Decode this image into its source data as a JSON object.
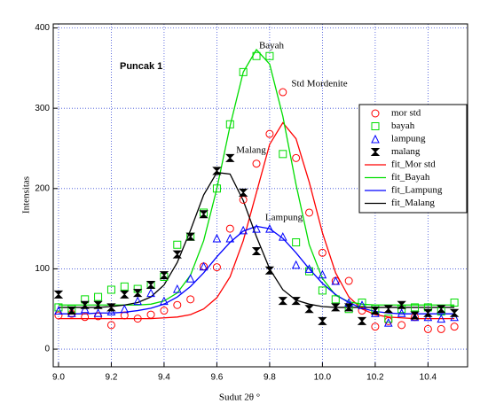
{
  "chart_data": {
    "type": "scatter",
    "xlabel": "Sudut 2θ °",
    "ylabel": "Intensitas",
    "annotations": [
      "Puncak 1",
      "Bayah",
      "Std Mordenite",
      "Malang",
      "Lampung"
    ],
    "xlim": [
      8.98,
      10.55
    ],
    "ylim": [
      -22,
      405
    ],
    "xticks": [
      {
        "value": 9,
        "label": "9.0"
      },
      9.2,
      9.4,
      9.6,
      9.8,
      {
        "value": 10,
        "label": "10.0"
      },
      10.2,
      10.4
    ],
    "yticks": [
      0,
      100,
      200,
      300,
      400
    ],
    "grid": true,
    "legend": "upper right",
    "x": [
      9.0,
      9.05,
      9.1,
      9.15,
      9.2,
      9.25,
      9.3,
      9.35,
      9.4,
      9.45,
      9.5,
      9.55,
      9.6,
      9.65,
      9.7,
      9.75,
      9.8,
      9.85,
      9.9,
      9.95,
      10.0,
      10.05,
      10.1,
      10.15,
      10.2,
      10.25,
      10.3,
      10.35,
      10.4,
      10.45,
      10.5
    ],
    "series": [
      {
        "name": "mor std",
        "color": "#ff0000",
        "mode": "markers",
        "marker": "circle",
        "values": [
          42,
          44,
          40,
          41,
          30,
          42,
          38,
          43,
          48,
          55,
          62,
          103,
          102,
          150,
          186,
          231,
          268,
          320,
          238,
          170,
          120,
          85,
          85,
          48,
          28,
          35,
          30,
          40,
          25,
          25,
          28
        ]
      },
      {
        "name": "bayah",
        "color": "#00dd00",
        "mode": "markers",
        "marker": "square",
        "values": [
          52,
          50,
          62,
          65,
          74,
          78,
          75,
          80,
          90,
          130,
          140,
          170,
          200,
          280,
          345,
          365,
          365,
          243,
          133,
          97,
          73,
          62,
          50,
          58,
          50,
          38,
          50,
          52,
          52,
          47,
          58
        ]
      },
      {
        "name": "lampung",
        "color": "#0000ff",
        "mode": "markers",
        "marker": "triangle",
        "values": [
          48,
          45,
          50,
          45,
          47,
          50,
          60,
          70,
          60,
          75,
          88,
          103,
          138,
          138,
          148,
          150,
          150,
          140,
          105,
          100,
          93,
          85,
          58,
          55,
          45,
          33,
          45,
          40,
          40,
          38,
          40
        ]
      },
      {
        "name": "malang",
        "color": "#000000",
        "mode": "markers",
        "marker": "hourglass",
        "values": [
          68,
          48,
          55,
          55,
          52,
          68,
          70,
          80,
          92,
          118,
          140,
          168,
          222,
          238,
          195,
          122,
          98,
          60,
          60,
          50,
          35,
          52,
          52,
          35,
          48,
          50,
          55,
          42,
          45,
          50,
          45
        ]
      },
      {
        "name": "fit_Mor std",
        "color": "#ff0000",
        "mode": "line",
        "values": [
          38,
          38,
          38,
          38,
          38,
          38,
          38,
          38,
          39,
          40,
          43,
          50,
          64,
          90,
          135,
          195,
          255,
          282,
          262,
          208,
          145,
          95,
          65,
          50,
          43,
          40,
          39,
          38,
          38,
          38,
          38
        ]
      },
      {
        "name": "fit_Bayah",
        "color": "#00dd00",
        "mode": "line",
        "values": [
          55,
          55,
          55,
          55,
          55,
          55,
          55,
          56,
          60,
          70,
          92,
          135,
          200,
          278,
          345,
          373,
          355,
          290,
          205,
          130,
          88,
          67,
          59,
          56,
          55,
          55,
          55,
          55,
          55,
          55,
          55
        ]
      },
      {
        "name": "fit_Lampung",
        "color": "#0000ff",
        "mode": "line",
        "values": [
          44,
          44,
          44,
          45,
          45,
          46,
          48,
          51,
          56,
          65,
          78,
          95,
          115,
          133,
          147,
          153,
          150,
          138,
          120,
          100,
          82,
          68,
          58,
          51,
          47,
          45,
          44,
          44,
          44,
          44,
          44
        ]
      },
      {
        "name": "fit_Malang",
        "color": "#000000",
        "mode": "line",
        "values": [
          52,
          52,
          52,
          52,
          53,
          55,
          58,
          65,
          80,
          108,
          148,
          192,
          220,
          218,
          185,
          140,
          100,
          74,
          61,
          56,
          53,
          52,
          52,
          52,
          52,
          52,
          52,
          52,
          52,
          52,
          52
        ]
      }
    ]
  }
}
